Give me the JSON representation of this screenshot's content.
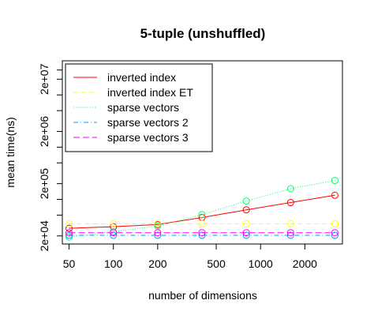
{
  "chart_data": {
    "type": "line",
    "title": "5-tuple (unshuffled)",
    "xlabel": "number of dimensions",
    "ylabel": "mean time(ns)",
    "x_scale": "log",
    "y_scale": "log",
    "xlim": [
      45,
      3600
    ],
    "ylim": [
      14000,
      45000000
    ],
    "x_ticks": [
      {
        "value": 50,
        "label": "50"
      },
      {
        "value": 100,
        "label": "100"
      },
      {
        "value": 200,
        "label": "200"
      },
      {
        "value": 500,
        "label": "500"
      },
      {
        "value": 1000,
        "label": "1000"
      },
      {
        "value": 2000,
        "label": "2000"
      }
    ],
    "y_ticks": [
      {
        "value": 20000,
        "label": "2e+04"
      },
      {
        "value": 200000,
        "label": "2e+05"
      },
      {
        "value": 2000000,
        "label": "2e+06"
      },
      {
        "value": 20000000,
        "label": "2e+07"
      }
    ],
    "y_minor_ticks": [
      50000,
      100000,
      500000,
      1000000,
      5000000,
      10000000,
      30000000
    ],
    "grid": false,
    "legend_position": "top-left",
    "x": [
      50,
      100,
      200,
      400,
      800,
      1600,
      3200
    ],
    "series": [
      {
        "name": "inverted index",
        "color": "#ff0000",
        "dash": "solid",
        "values": [
          28000,
          30000,
          33000,
          45000,
          63000,
          87000,
          120000
        ]
      },
      {
        "name": "inverted index ET",
        "color": "#ffff00",
        "dash": "6,4",
        "values": [
          34000,
          34000,
          34000,
          34000,
          34000,
          34000,
          34000
        ]
      },
      {
        "name": "sparse vectors",
        "color": "#00ff66",
        "dash": "1,2",
        "values": [
          19000,
          24000,
          31000,
          51000,
          93000,
          160000,
          230000
        ]
      },
      {
        "name": "sparse vectors 2",
        "color": "#0099ff",
        "dash": "6,3,1,3",
        "values": [
          20500,
          20500,
          20500,
          20500,
          20500,
          20500,
          20500
        ]
      },
      {
        "name": "sparse vectors 3",
        "color": "#ff00ff",
        "dash": "8,4",
        "values": [
          23000,
          23000,
          23000,
          23000,
          23000,
          23000,
          23000
        ]
      }
    ]
  }
}
